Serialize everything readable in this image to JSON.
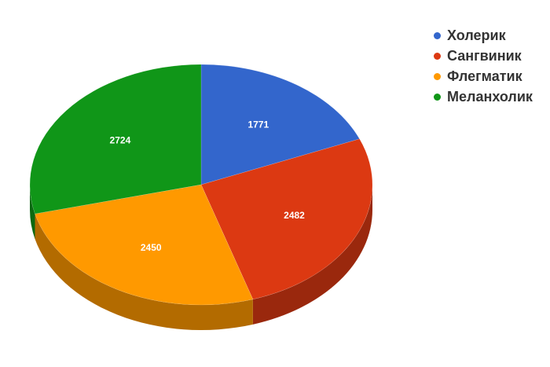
{
  "chart_data": {
    "type": "pie",
    "style": "3d",
    "categories": [
      "Холерик",
      "Сангвиник",
      "Флегматик",
      "Меланхолик"
    ],
    "values": [
      1771,
      2482,
      2450,
      2724
    ],
    "colors": [
      "#3366cc",
      "#dc3912",
      "#ff9900",
      "#109618"
    ],
    "title": "",
    "legend": "right"
  }
}
